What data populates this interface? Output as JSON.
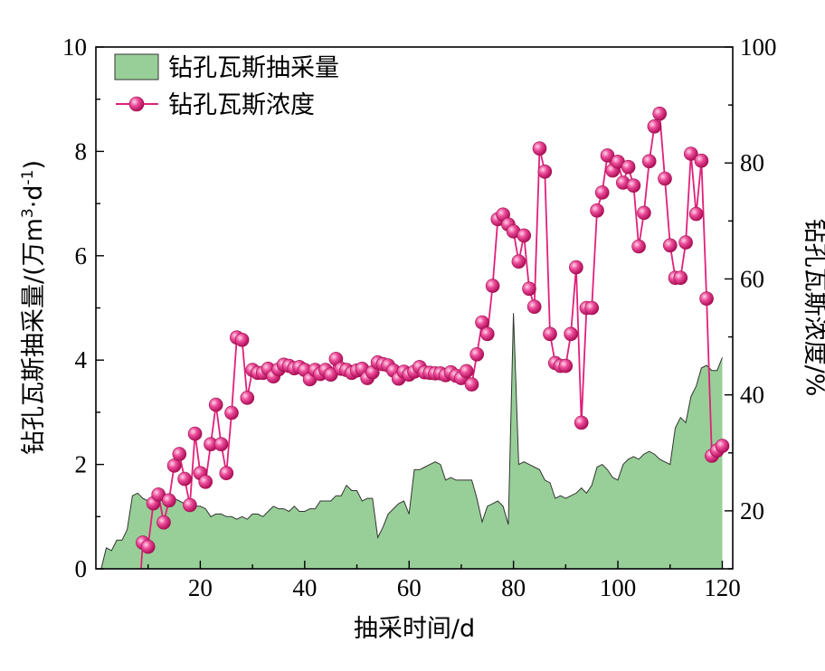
{
  "chart_data": {
    "type": "area+line",
    "title": "",
    "xlabel": "抽采时间/d",
    "ylabel_left_prefix": "钻孔瓦斯抽采量/(万m",
    "ylabel_left_sup1": "3",
    "ylabel_left_mid": "·d",
    "ylabel_left_sup2": "-1",
    "ylabel_left_suffix": ")",
    "ylabel_right": "钻孔瓦斯浓度/%",
    "xlim": [
      0,
      122
    ],
    "ylim_left": [
      0,
      10
    ],
    "ylim_right": [
      10,
      100
    ],
    "x_ticks": [
      20,
      40,
      60,
      80,
      100,
      120
    ],
    "y_left_ticks": [
      0,
      2,
      4,
      6,
      8,
      10
    ],
    "y_right_ticks": [
      20,
      40,
      60,
      80,
      100
    ],
    "legend_position": "top-left",
    "colors": {
      "area_fill": "#98cf98",
      "area_edge": "#333333",
      "line": "#e0207a",
      "marker": "#e0207a"
    },
    "series": [
      {
        "name": "钻孔瓦斯抽采量",
        "kind": "area",
        "axis": "left",
        "x": [
          1,
          2,
          3,
          4,
          5,
          6,
          7,
          8,
          9,
          10,
          11,
          12,
          13,
          14,
          15,
          16,
          17,
          18,
          19,
          20,
          21,
          22,
          23,
          24,
          25,
          26,
          27,
          28,
          29,
          30,
          31,
          32,
          33,
          34,
          35,
          36,
          37,
          38,
          39,
          40,
          41,
          42,
          43,
          44,
          45,
          46,
          47,
          48,
          49,
          50,
          51,
          52,
          53,
          54,
          55,
          56,
          57,
          58,
          59,
          60,
          61,
          62,
          63,
          64,
          65,
          66,
          67,
          68,
          69,
          70,
          71,
          72,
          73,
          74,
          75,
          76,
          77,
          78,
          79,
          80,
          81,
          82,
          83,
          84,
          85,
          86,
          87,
          88,
          89,
          90,
          91,
          92,
          93,
          94,
          95,
          96,
          97,
          98,
          99,
          100,
          101,
          102,
          103,
          104,
          105,
          106,
          107,
          108,
          109,
          110,
          111,
          112,
          113,
          114,
          115,
          116,
          117,
          118,
          119,
          120
        ],
        "values": [
          0.0,
          0.4,
          0.35,
          0.55,
          0.55,
          0.75,
          1.4,
          1.45,
          1.35,
          1.3,
          1.4,
          1.45,
          1.4,
          1.35,
          1.35,
          1.3,
          1.25,
          1.2,
          1.2,
          1.2,
          1.15,
          1.0,
          1.05,
          1.05,
          1.0,
          1.0,
          0.95,
          1.0,
          0.95,
          1.05,
          1.05,
          1.0,
          1.1,
          1.2,
          1.15,
          1.15,
          1.1,
          1.2,
          1.1,
          1.1,
          1.15,
          1.15,
          1.3,
          1.3,
          1.3,
          1.4,
          1.4,
          1.6,
          1.5,
          1.5,
          1.3,
          1.35,
          1.35,
          0.6,
          0.8,
          1.05,
          1.15,
          1.25,
          1.3,
          1.05,
          1.9,
          1.9,
          1.95,
          2.0,
          2.05,
          2.0,
          1.7,
          1.75,
          1.7,
          1.7,
          1.7,
          1.7,
          1.35,
          0.9,
          1.2,
          1.25,
          1.3,
          1.2,
          0.85,
          4.9,
          2.0,
          2.05,
          2.0,
          1.95,
          1.9,
          1.7,
          1.65,
          1.35,
          1.4,
          1.35,
          1.4,
          1.45,
          1.55,
          1.45,
          1.6,
          1.95,
          2.0,
          1.9,
          1.75,
          1.7,
          2.0,
          2.1,
          2.15,
          2.1,
          2.2,
          2.25,
          2.2,
          2.1,
          2.05,
          2.0,
          2.7,
          2.9,
          2.8,
          3.3,
          3.5,
          3.85,
          3.9,
          3.8,
          3.8,
          4.05
        ]
      },
      {
        "name": "钻孔瓦斯浓度",
        "kind": "line",
        "axis": "right",
        "x": [
          9,
          10,
          11,
          12,
          13,
          14,
          15,
          16,
          17,
          18,
          19,
          20,
          21,
          22,
          23,
          24,
          25,
          26,
          27,
          28,
          29,
          30,
          31,
          32,
          33,
          34,
          35,
          36,
          37,
          38,
          39,
          40,
          41,
          42,
          43,
          44,
          45,
          46,
          47,
          48,
          49,
          50,
          51,
          52,
          53,
          54,
          55,
          56,
          57,
          58,
          59,
          60,
          61,
          62,
          63,
          64,
          65,
          66,
          67,
          68,
          69,
          70,
          71,
          72,
          73,
          74,
          75,
          76,
          77,
          78,
          79,
          80,
          81,
          82,
          83,
          84,
          85,
          86,
          87,
          88,
          89,
          90,
          91,
          92,
          93,
          94,
          95,
          96,
          97,
          98,
          99,
          100,
          101,
          102,
          103,
          104,
          105,
          106,
          107,
          108,
          109,
          110,
          111,
          112,
          113,
          114,
          115,
          116,
          117,
          118,
          119,
          120
        ],
        "values": [
          14.5,
          13.8,
          21.3,
          22.8,
          18.0,
          21.8,
          27.8,
          29.8,
          25.5,
          21.0,
          33.3,
          26.5,
          25.0,
          31.5,
          38.3,
          31.5,
          26.5,
          36.9,
          49.9,
          49.5,
          39.5,
          44.3,
          43.8,
          43.8,
          44.5,
          43.2,
          44.4,
          45.2,
          45.0,
          44.6,
          44.8,
          44.3,
          42.7,
          44.3,
          43.6,
          44.3,
          43.5,
          46.2,
          44.5,
          44.3,
          43.8,
          44.2,
          44.5,
          42.9,
          43.9,
          45.6,
          45.3,
          45.1,
          44.2,
          42.8,
          44.0,
          43.5,
          44.0,
          44.8,
          43.9,
          43.8,
          43.7,
          43.7,
          43.4,
          43.9,
          43.3,
          42.9,
          44.1,
          41.8,
          47.0,
          52.5,
          50.5,
          58.8,
          70.3,
          71.1,
          69.4,
          68.2,
          63.0,
          67.5,
          58.3,
          55.2,
          82.5,
          78.5,
          50.5,
          45.5,
          45.0,
          45.0,
          50.5,
          62.0,
          35.2,
          55.0,
          55.0,
          71.8,
          74.9,
          81.3,
          78.7,
          80.2,
          76.6,
          79.3,
          76.1,
          65.6,
          71.4,
          80.3,
          86.3,
          88.5,
          77.3,
          65.8,
          60.2,
          60.2,
          66.3,
          81.6,
          71.2,
          80.4,
          56.6,
          29.5,
          30.4,
          31.2
        ]
      }
    ]
  }
}
